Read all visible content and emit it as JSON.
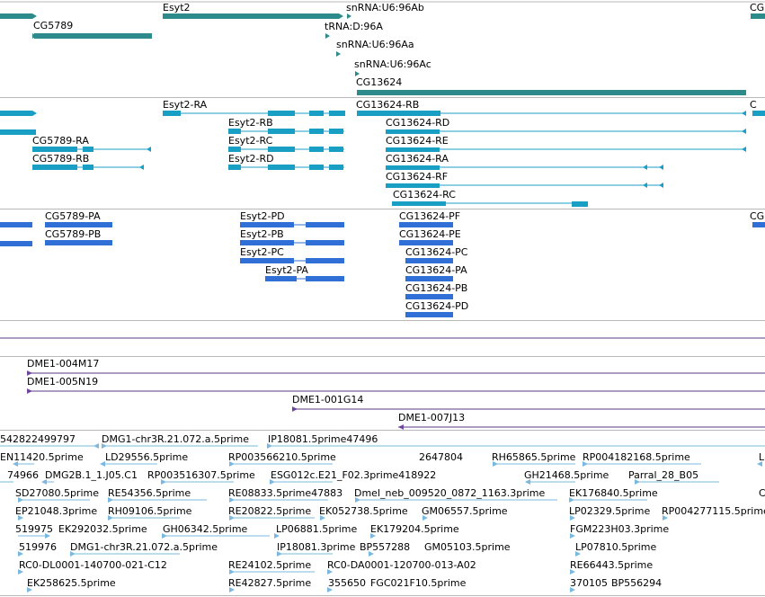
{
  "colors": {
    "gene": "#2e8b8b",
    "transcript": "#1a9fc4",
    "protein": "#2f6fd6",
    "clone": "#7a4fa8",
    "clone_line": "#5a3a8a",
    "est": "#7ab8e0",
    "separator": "#b8b8b8"
  },
  "gene_track": {
    "features": [
      {
        "label": "",
        "icon": "gene-bar"
      },
      {
        "label": "CG5789"
      },
      {
        "label": "Esyt2"
      },
      {
        "label": "snRNA:U6:96Ab"
      },
      {
        "label": "tRNA:D:96A"
      },
      {
        "label": "snRNA:U6:96Aa"
      },
      {
        "label": "snRNA:U6:96Ac"
      },
      {
        "label": "CG13624"
      },
      {
        "label": "CG"
      }
    ]
  },
  "transcript_track": {
    "features": [
      {
        "label": "Esyt2-RA"
      },
      {
        "label": "CG13624-RB"
      },
      {
        "label": "C"
      },
      {
        "label": "Esyt2-RB"
      },
      {
        "label": "CG13624-RD"
      },
      {
        "label": "CG5789-RA"
      },
      {
        "label": "Esyt2-RC"
      },
      {
        "label": "CG13624-RE"
      },
      {
        "label": "CG5789-RB"
      },
      {
        "label": "Esyt2-RD"
      },
      {
        "label": "CG13624-RA"
      },
      {
        "label": "CG13624-RF"
      },
      {
        "label": "CG13624-RC"
      }
    ]
  },
  "protein_track": {
    "features": [
      {
        "label": "CG5789-PA"
      },
      {
        "label": "Esyt2-PD"
      },
      {
        "label": "CG13624-PF"
      },
      {
        "label": "CG"
      },
      {
        "label": "CG5789-PB"
      },
      {
        "label": "Esyt2-PB"
      },
      {
        "label": "CG13624-PE"
      },
      {
        "label": "Esyt2-PC"
      },
      {
        "label": "CG13624-PC"
      },
      {
        "label": "Esyt2-PA"
      },
      {
        "label": "CG13624-PA"
      },
      {
        "label": "CG13624-PB"
      },
      {
        "label": "CG13624-PD"
      }
    ]
  },
  "clone_track": {
    "features": [
      {
        "label": "DME1-004M17"
      },
      {
        "label": "DME1-005N19"
      },
      {
        "label": "DME1-001G14"
      },
      {
        "label": "DME1-007J13"
      }
    ]
  },
  "est_track": {
    "labels": [
      "542822499797",
      "DMG1-chr3R.21.072.a.5prime",
      "IP18081.5prime47496",
      "EN11420.5prime",
      "LD29556.5prime",
      "RP003566210.5prime",
      "2647804",
      "RH65865.5prime",
      "RP004182168.5prime",
      "L",
      "74966",
      "DMG2B.1_1.J05.C1",
      "RP003516307.5prime",
      "ESG012c.E21_F02.3prime418922",
      "GH21468.5prime",
      "Parral_28_B05",
      "SD27080.5prime",
      "RE54356.5prime",
      "RE08833.5prime47883",
      "Dmel_neb_009520_0872_1163.3prime",
      "EK176840.5prime",
      "C",
      "EP21048.3prime",
      "RH09106.5prime",
      "RE20822.5prime",
      "EK052738.5prime",
      "GM06557.5prime",
      "LP02329.5prime",
      "RP004277115.5prime",
      "519975",
      "EK292032.5prime",
      "GH06342.5prime",
      "LP06881.5prime",
      "EK179204.5prime",
      "FGM223H03.3prime",
      "519976",
      "DMG1-chr3R.21.072.a.5prime",
      "IP18081.3prime",
      "BP557288",
      "GM05103.5prime",
      "LP07810.5prime",
      "RC0-DL0001-140700-021-C12",
      "RE24102.5prime",
      "RC0-DA0001-120700-013-A02",
      "RE66443.5prime",
      "EK258625.5prime",
      "RE42827.5prime",
      "355650",
      "FGC021F10.5prime",
      "370105",
      "BP556294"
    ]
  }
}
